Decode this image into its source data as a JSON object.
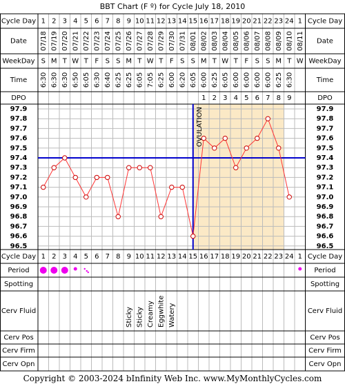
{
  "title": "BBT Chart (F º) for Cycle July 18, 2010",
  "copyright": "Copyright © 2003-2024 bInfinity Web Inc.     www.MyMonthlyCycles.com",
  "row_labels": {
    "cycle_day": "Cycle Day",
    "date": "Date",
    "weekday": "WeekDay",
    "time": "Time",
    "dpo": "DPO",
    "period": "Period",
    "spotting": "Spotting",
    "cerv_fluid": "Cerv Fluid",
    "cerv_pos": "Cerv Pos",
    "cerv_firm": "Cerv Firm",
    "cerv_opn": "Cerv Opn"
  },
  "ovulation_label": "OVULATION",
  "ovulation_day": 15,
  "coverline": 97.4,
  "colors": {
    "grid_line": "#bbbbbb",
    "luteal_fill": "#fbe9c6",
    "temp_line": "#ff3333",
    "point_fill": "#ffffff",
    "point_stroke": "#cc0000",
    "coverline": "#0000cc",
    "ovulation_line": "#0000cc",
    "period_dot": "#ee00ee"
  },
  "cycle_days": [
    "1",
    "2",
    "3",
    "4",
    "5",
    "6",
    "7",
    "8",
    "9",
    "10",
    "11",
    "12",
    "13",
    "14",
    "15",
    "16",
    "17",
    "18",
    "19",
    "20",
    "21",
    "22",
    "23",
    "24",
    "1"
  ],
  "dates": [
    "07/18",
    "07/19",
    "07/20",
    "07/21",
    "07/22",
    "07/23",
    "07/24",
    "07/25",
    "07/26",
    "07/27",
    "07/28",
    "07/29",
    "07/30",
    "07/31",
    "08/01",
    "08/02",
    "08/03",
    "08/04",
    "08/05",
    "08/06",
    "08/07",
    "08/08",
    "08/09",
    "08/10",
    "08/11"
  ],
  "weekdays": [
    "S",
    "M",
    "T",
    "W",
    "T",
    "F",
    "S",
    "S",
    "M",
    "T",
    "W",
    "T",
    "F",
    "S",
    "S",
    "M",
    "T",
    "W",
    "T",
    "F",
    "S",
    "S",
    "M",
    "T",
    "W"
  ],
  "times": [
    "6:30",
    "6:30",
    "6:30",
    "6:50",
    "6:05",
    "6:30",
    "6:40",
    "6:25",
    "6:25",
    "6:05",
    "7:05",
    "6:25",
    "6:00",
    "6:20",
    "6:05",
    "6:00",
    "6:25",
    "6:05",
    "6:00",
    "6:00",
    "6:00",
    "6:00",
    "6:25",
    "6:30",
    ""
  ],
  "dpo": [
    "",
    "",
    "",
    "",
    "",
    "",
    "",
    "",
    "",
    "",
    "",
    "",
    "",
    "",
    "",
    "1",
    "2",
    "3",
    "4",
    "5",
    "6",
    "7",
    "8",
    "9",
    ""
  ],
  "temp_scale": [
    "97.9",
    "97.8",
    "97.7",
    "97.6",
    "97.5",
    "97.4",
    "97.3",
    "97.2",
    "97.1",
    "97.0",
    "96.9",
    "96.8",
    "96.7",
    "96.6",
    "96.5"
  ],
  "temps": [
    97.1,
    97.3,
    97.4,
    97.2,
    97.0,
    97.2,
    97.2,
    96.8,
    97.3,
    97.3,
    97.3,
    96.8,
    97.1,
    97.1,
    96.6,
    97.6,
    97.5,
    97.6,
    97.3,
    97.5,
    97.6,
    97.8,
    97.5,
    97.0,
    null
  ],
  "period": [
    "heavy",
    "heavy",
    "heavy",
    "medium",
    "spotting",
    "",
    "",
    "",
    "",
    "",
    "",
    "",
    "",
    "",
    "",
    "",
    "",
    "",
    "",
    "",
    "",
    "",
    "",
    "",
    "medium"
  ],
  "cerv_fluid": [
    "",
    "",
    "",
    "",
    "",
    "",
    "",
    "",
    "Sticky",
    "Sticky",
    "Creamy",
    "Eggwhite",
    "Watery",
    "",
    "",
    "",
    "",
    "",
    "",
    "",
    "",
    "",
    "",
    "",
    ""
  ]
}
